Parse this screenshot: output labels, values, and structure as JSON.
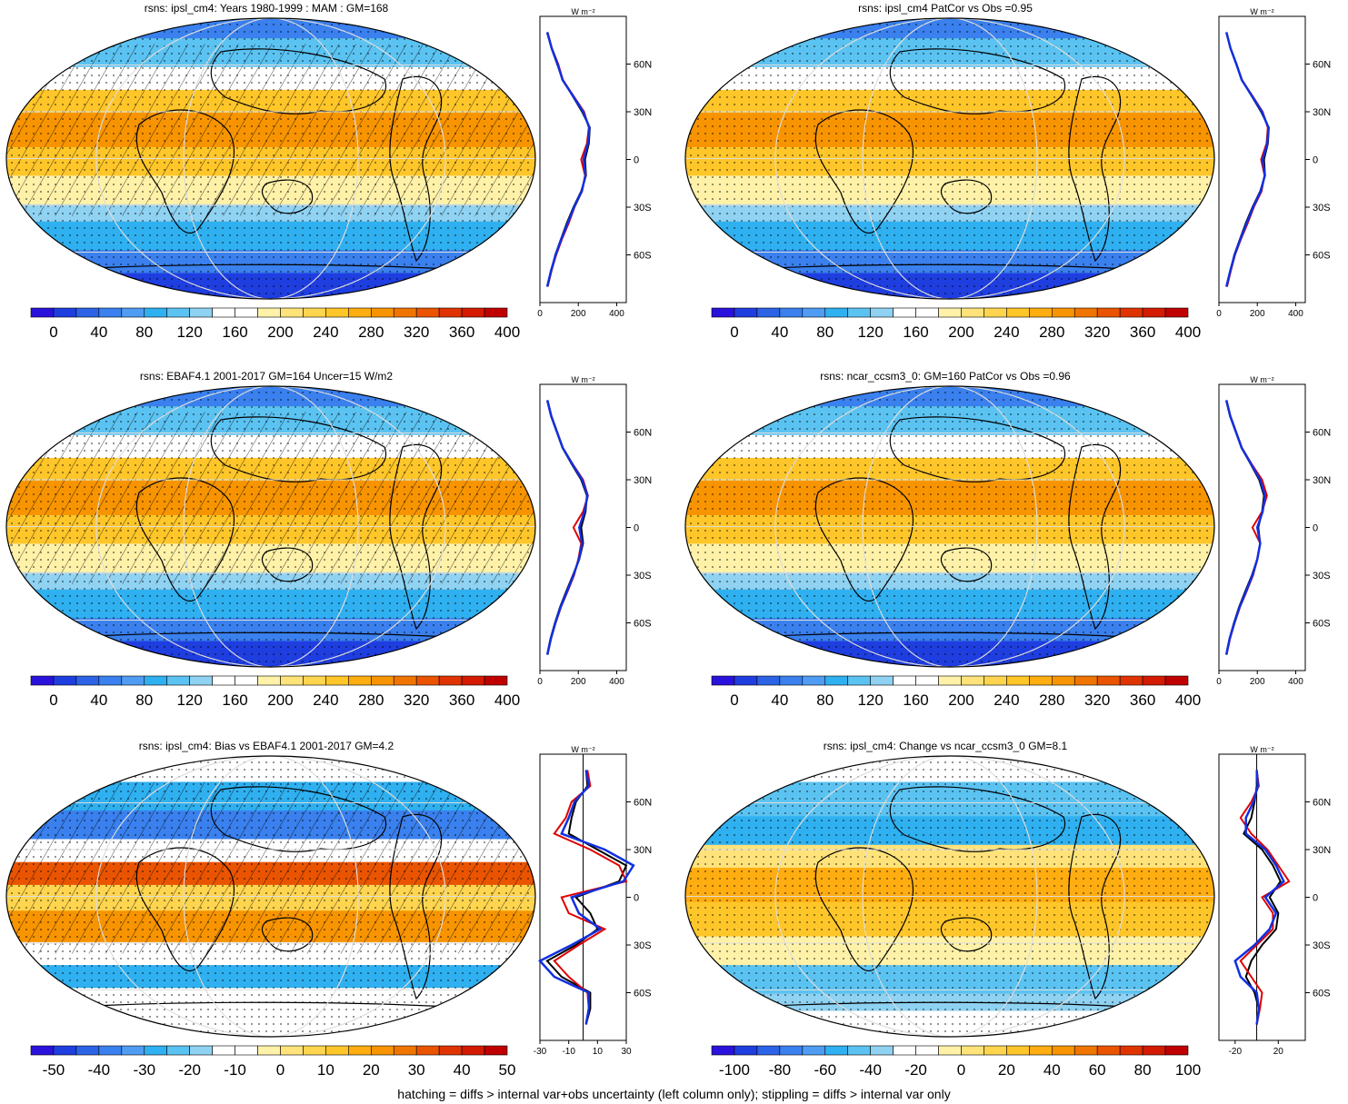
{
  "footer_note": "hatching = diffs > internal var+obs uncertainty (left column only); stippling = diffs > internal var only",
  "profile_lat_ticks": [
    "60N",
    "30N",
    "0",
    "30S",
    "60S"
  ],
  "profile_lat_values": [
    60,
    30,
    0,
    -30,
    -60
  ],
  "profile_unit": "W m⁻²",
  "absolute_scale": {
    "labels": [
      "0",
      "40",
      "80",
      "120",
      "160",
      "200",
      "240",
      "280",
      "320",
      "360",
      "400"
    ],
    "colors": [
      "#2a12dc",
      "#1f3ee0",
      "#2c63e6",
      "#3a80ee",
      "#4f9cf2",
      "#2fb0f0",
      "#5bc3f2",
      "#8fd2f2",
      "#ffffff",
      "#ffffff",
      "#fff2a8",
      "#ffe37a",
      "#ffd54f",
      "#ffc62a",
      "#ffad10",
      "#f79400",
      "#f07500",
      "#ea5400",
      "#e03400",
      "#d41a00",
      "#c00000"
    ]
  },
  "bias_scale": {
    "labels": [
      "-50",
      "-40",
      "-30",
      "-20",
      "-10",
      "0",
      "10",
      "20",
      "30",
      "40",
      "50"
    ]
  },
  "change_scale": {
    "labels": [
      "-100",
      "-80",
      "-60",
      "-40",
      "-20",
      "0",
      "20",
      "40",
      "60",
      "80",
      "100"
    ]
  },
  "panels": [
    {
      "title": "rsns: ipsl_cm4: Years 1980-1999 : MAM : GM=168",
      "hatched": true,
      "kind": "abs",
      "profile_xticks": [
        "0",
        "200",
        "400"
      ],
      "profile_xvalues": [
        0,
        200,
        400
      ],
      "profile_xlim": [
        0,
        450
      ]
    },
    {
      "title": "rsns: ipsl_cm4 PatCor vs Obs =0.95",
      "hatched": false,
      "kind": "abs",
      "profile_xticks": [
        "0",
        "200",
        "400"
      ],
      "profile_xvalues": [
        0,
        200,
        400
      ],
      "profile_xlim": [
        0,
        450
      ]
    },
    {
      "title": "rsns: EBAF4.1 2001-2017 GM=164 Uncer=15 W/m2",
      "hatched": true,
      "kind": "abs",
      "profile_xticks": [
        "0",
        "200",
        "400"
      ],
      "profile_xvalues": [
        0,
        200,
        400
      ],
      "profile_xlim": [
        0,
        450
      ]
    },
    {
      "title": "rsns: ncar_ccsm3_0: GM=160 PatCor vs Obs =0.96",
      "hatched": false,
      "kind": "abs",
      "profile_xticks": [
        "0",
        "200",
        "400"
      ],
      "profile_xvalues": [
        0,
        200,
        400
      ],
      "profile_xlim": [
        0,
        450
      ]
    },
    {
      "title": "rsns: ipsl_cm4: Bias vs EBAF4.1 2001-2017 GM=4.2",
      "hatched": true,
      "kind": "bias",
      "profile_xticks": [
        "-30",
        "-10",
        "10",
        "30"
      ],
      "profile_xvalues": [
        -30,
        -10,
        10,
        30
      ],
      "profile_xlim": [
        -30,
        30
      ]
    },
    {
      "title": "rsns: ipsl_cm4: Change vs ncar_ccsm3_0 GM=8.1",
      "hatched": false,
      "kind": "change",
      "profile_xticks": [
        "-20",
        "20"
      ],
      "profile_xvalues": [
        -20,
        20
      ],
      "profile_xlim": [
        -35,
        45
      ]
    }
  ],
  "chart_data": [
    {
      "type": "line",
      "title": "",
      "ylabel": "",
      "xlabel": "W m⁻²",
      "lat": [
        -80,
        -70,
        -60,
        -50,
        -40,
        -30,
        -20,
        -10,
        0,
        10,
        20,
        30,
        40,
        50,
        60,
        70,
        80
      ],
      "series": [
        {
          "values": [
            40,
            60,
            80,
            110,
            140,
            175,
            215,
            240,
            235,
            255,
            260,
            220,
            170,
            120,
            90,
            60,
            40
          ]
        },
        {
          "values": [
            40,
            60,
            85,
            115,
            150,
            180,
            220,
            235,
            215,
            245,
            255,
            230,
            175,
            120,
            95,
            62,
            40
          ]
        },
        {
          "values": [
            38,
            58,
            82,
            112,
            145,
            178,
            218,
            238,
            228,
            250,
            258,
            225,
            172,
            118,
            92,
            61,
            38
          ]
        }
      ]
    },
    {
      "type": "line",
      "title": "",
      "ylabel": "",
      "xlabel": "W m⁻²",
      "lat": [
        -80,
        -70,
        -60,
        -50,
        -40,
        -30,
        -20,
        -10,
        0,
        10,
        20,
        30,
        40,
        50,
        60,
        70,
        80
      ],
      "series": [
        {
          "values": [
            40,
            60,
            80,
            110,
            140,
            175,
            215,
            240,
            235,
            255,
            260,
            220,
            170,
            120,
            90,
            60,
            40
          ]
        },
        {
          "values": [
            42,
            62,
            84,
            115,
            150,
            182,
            222,
            238,
            220,
            248,
            255,
            228,
            175,
            120,
            92,
            60,
            40
          ]
        },
        {
          "values": [
            39,
            59,
            82,
            112,
            145,
            178,
            218,
            239,
            228,
            252,
            258,
            224,
            172,
            119,
            91,
            60,
            39
          ]
        }
      ]
    },
    {
      "type": "line",
      "title": "",
      "ylabel": "",
      "xlabel": "W m⁻²",
      "lat": [
        -80,
        -70,
        -60,
        -50,
        -40,
        -30,
        -20,
        -10,
        0,
        10,
        20,
        30,
        40,
        50,
        60,
        70,
        80
      ],
      "series": [
        {
          "values": [
            38,
            55,
            78,
            105,
            138,
            172,
            205,
            225,
            215,
            238,
            245,
            215,
            165,
            118,
            88,
            58,
            38
          ]
        },
        {
          "values": [
            40,
            58,
            82,
            110,
            145,
            178,
            200,
            215,
            175,
            225,
            250,
            225,
            170,
            120,
            90,
            60,
            40
          ]
        },
        {
          "values": [
            39,
            57,
            80,
            108,
            142,
            175,
            203,
            220,
            205,
            232,
            248,
            220,
            168,
            119,
            89,
            59,
            39
          ]
        }
      ]
    },
    {
      "type": "line",
      "title": "",
      "ylabel": "",
      "xlabel": "W m⁻²",
      "lat": [
        -80,
        -70,
        -60,
        -50,
        -40,
        -30,
        -20,
        -10,
        0,
        10,
        20,
        30,
        40,
        50,
        60,
        70,
        80
      ],
      "series": [
        {
          "values": [
            38,
            55,
            78,
            105,
            138,
            172,
            200,
            215,
            205,
            225,
            235,
            210,
            165,
            118,
            88,
            58,
            38
          ]
        },
        {
          "values": [
            40,
            58,
            82,
            110,
            145,
            178,
            200,
            215,
            175,
            225,
            250,
            225,
            170,
            120,
            90,
            60,
            40
          ]
        },
        {
          "values": [
            39,
            56,
            80,
            108,
            142,
            175,
            200,
            215,
            200,
            228,
            240,
            215,
            167,
            119,
            89,
            59,
            39
          ]
        }
      ]
    },
    {
      "type": "line",
      "title": "",
      "ylabel": "",
      "xlabel": "W m⁻²",
      "lat": [
        -80,
        -70,
        -60,
        -50,
        -40,
        -30,
        -20,
        -10,
        0,
        10,
        20,
        30,
        40,
        50,
        60,
        70,
        80
      ],
      "series": [
        {
          "values": [
            2,
            5,
            5,
            -15,
            -25,
            -5,
            10,
            5,
            -5,
            25,
            30,
            10,
            -10,
            -8,
            -5,
            3,
            2
          ]
        },
        {
          "values": [
            2,
            4,
            3,
            -10,
            -20,
            -3,
            15,
            -10,
            -15,
            30,
            25,
            5,
            -20,
            -12,
            -8,
            5,
            3
          ]
        },
        {
          "values": [
            2,
            4,
            4,
            -20,
            -30,
            -8,
            12,
            -3,
            -8,
            28,
            35,
            15,
            -15,
            -10,
            -6,
            4,
            2
          ]
        }
      ]
    },
    {
      "type": "line",
      "title": "",
      "ylabel": "",
      "xlabel": "W m⁻²",
      "lat": [
        -80,
        -70,
        -60,
        -50,
        -40,
        -30,
        -20,
        -10,
        0,
        10,
        20,
        30,
        40,
        50,
        60,
        70,
        80
      ],
      "series": [
        {
          "values": [
            0,
            2,
            -2,
            -10,
            -5,
            5,
            18,
            20,
            12,
            22,
            15,
            5,
            -12,
            -5,
            -2,
            0,
            0
          ]
        },
        {
          "values": [
            0,
            3,
            5,
            -5,
            -15,
            0,
            15,
            15,
            5,
            30,
            20,
            10,
            -5,
            -15,
            -5,
            2,
            0
          ]
        },
        {
          "values": [
            0,
            2,
            0,
            -15,
            -20,
            -2,
            12,
            18,
            8,
            25,
            18,
            8,
            -10,
            -10,
            -3,
            1,
            0
          ]
        }
      ]
    }
  ]
}
